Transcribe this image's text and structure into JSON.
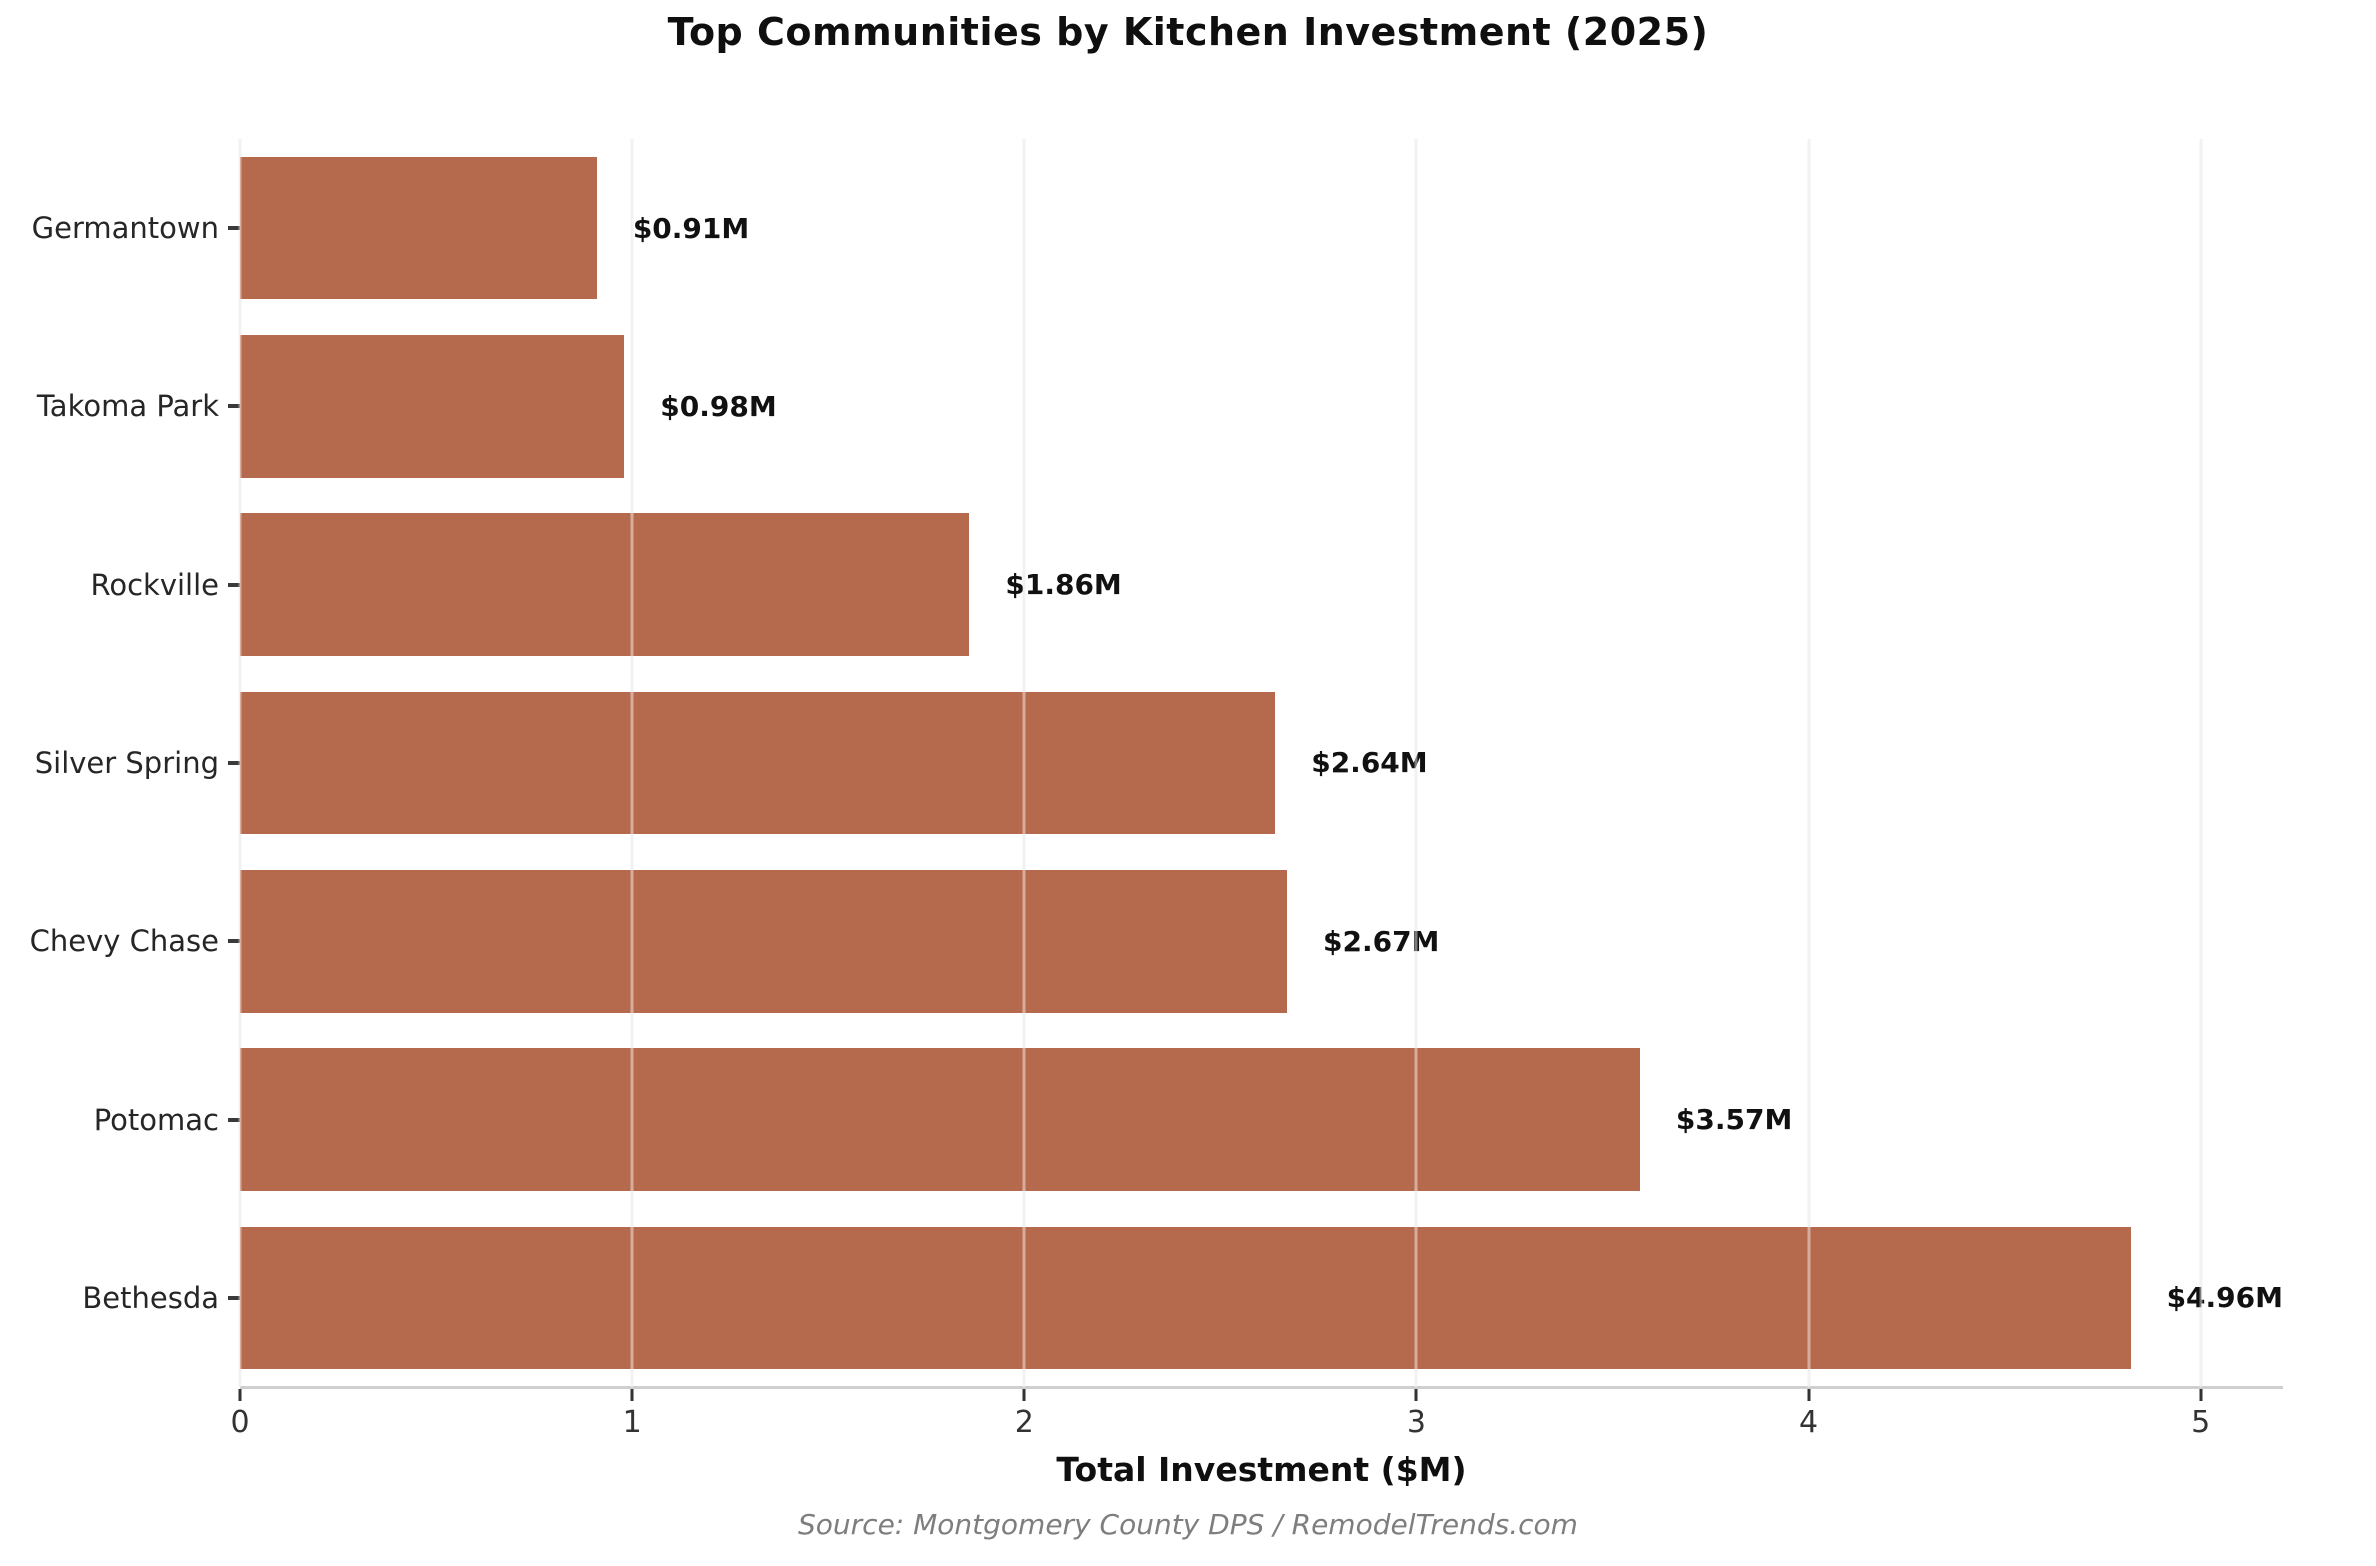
{
  "chart_data": {
    "type": "bar",
    "orientation": "horizontal",
    "title": "Top Communities by Kitchen Investment (2025)",
    "categories": [
      "Germantown",
      "Takoma Park",
      "Rockville",
      "Silver Spring",
      "Chevy Chase",
      "Potomac",
      "Bethesda"
    ],
    "values": [
      0.91,
      0.98,
      1.86,
      2.64,
      2.67,
      3.57,
      4.96
    ],
    "value_labels": [
      "$0.91M",
      "$0.98M",
      "$1.86M",
      "$2.64M",
      "$2.67M",
      "$3.57M",
      "$4.96M"
    ],
    "xlabel": "Total Investment ($M)",
    "xticks": [
      0,
      1,
      2,
      3,
      4,
      5
    ],
    "xtick_labels": [
      "0",
      "1",
      "2",
      "3",
      "4",
      "5"
    ],
    "xlim": [
      0,
      5.21
    ],
    "grid": true,
    "bar_color": "#b5694d",
    "grid_color": "#e7e7e7",
    "axis_line_color": "#cfcfcf",
    "source": "Source: Montgomery County DPS / RemodelTrends.com"
  }
}
